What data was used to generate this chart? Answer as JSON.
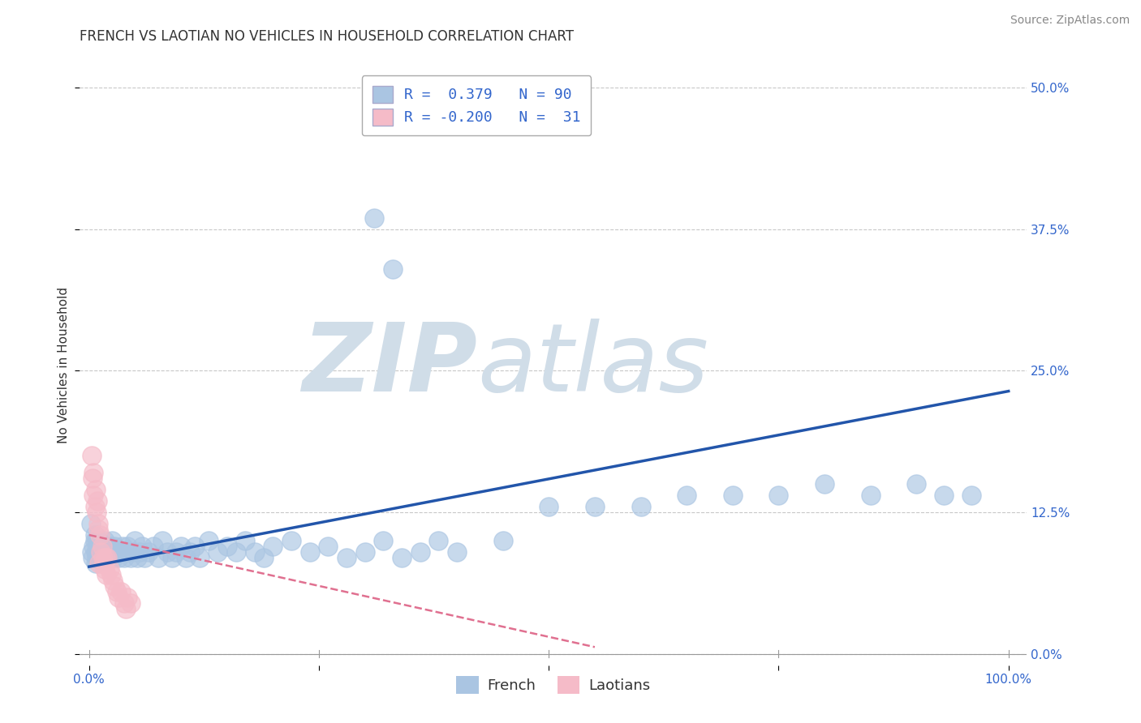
{
  "title": "FRENCH VS LAOTIAN NO VEHICLES IN HOUSEHOLD CORRELATION CHART",
  "source": "Source: ZipAtlas.com",
  "ylabel": "No Vehicles in Household",
  "xlim": [
    -0.01,
    1.02
  ],
  "ylim": [
    -0.01,
    0.52
  ],
  "xtick_positions": [
    0.0,
    0.25,
    0.5,
    0.75,
    1.0
  ],
  "xtick_labels": [
    "0.0%",
    "",
    "",
    "",
    "100.0%"
  ],
  "ytick_values": [
    0.0,
    0.125,
    0.25,
    0.375,
    0.5
  ],
  "ytick_labels": [
    "0.0%",
    "12.5%",
    "25.0%",
    "37.5%",
    "50.0%"
  ],
  "grid_color": "#c8c8c8",
  "background_color": "#ffffff",
  "french_color": "#aac5e2",
  "french_line_color": "#2255aa",
  "french_R": 0.379,
  "french_N": 90,
  "french_slope": 0.155,
  "french_intercept": 0.077,
  "laotian_color": "#f5bbc8",
  "laotian_line_color": "#e07090",
  "laotian_R": -0.2,
  "laotian_N": 31,
  "laotian_slope": -0.18,
  "laotian_intercept": 0.105,
  "french_x": [
    0.002,
    0.003,
    0.004,
    0.005,
    0.006,
    0.006,
    0.007,
    0.007,
    0.008,
    0.008,
    0.009,
    0.01,
    0.01,
    0.011,
    0.012,
    0.013,
    0.014,
    0.015,
    0.015,
    0.016,
    0.017,
    0.018,
    0.019,
    0.02,
    0.021,
    0.022,
    0.023,
    0.024,
    0.025,
    0.026,
    0.027,
    0.028,
    0.03,
    0.032,
    0.034,
    0.036,
    0.038,
    0.04,
    0.042,
    0.045,
    0.048,
    0.05,
    0.052,
    0.055,
    0.058,
    0.06,
    0.065,
    0.07,
    0.075,
    0.08,
    0.085,
    0.09,
    0.095,
    0.1,
    0.105,
    0.11,
    0.115,
    0.12,
    0.13,
    0.14,
    0.15,
    0.16,
    0.17,
    0.18,
    0.19,
    0.2,
    0.22,
    0.24,
    0.26,
    0.28,
    0.3,
    0.32,
    0.34,
    0.36,
    0.38,
    0.4,
    0.45,
    0.5,
    0.55,
    0.6,
    0.65,
    0.7,
    0.75,
    0.8,
    0.85,
    0.9,
    0.93,
    0.96,
    0.31,
    0.33
  ],
  "french_y": [
    0.115,
    0.09,
    0.085,
    0.095,
    0.1,
    0.105,
    0.08,
    0.09,
    0.085,
    0.1,
    0.095,
    0.085,
    0.09,
    0.1,
    0.09,
    0.085,
    0.095,
    0.085,
    0.09,
    0.095,
    0.1,
    0.085,
    0.09,
    0.095,
    0.085,
    0.09,
    0.095,
    0.085,
    0.1,
    0.09,
    0.085,
    0.095,
    0.09,
    0.085,
    0.09,
    0.095,
    0.085,
    0.09,
    0.095,
    0.085,
    0.09,
    0.1,
    0.085,
    0.09,
    0.095,
    0.085,
    0.09,
    0.095,
    0.085,
    0.1,
    0.09,
    0.085,
    0.09,
    0.095,
    0.085,
    0.09,
    0.095,
    0.085,
    0.1,
    0.09,
    0.095,
    0.09,
    0.1,
    0.09,
    0.085,
    0.095,
    0.1,
    0.09,
    0.095,
    0.085,
    0.09,
    0.1,
    0.085,
    0.09,
    0.1,
    0.09,
    0.1,
    0.13,
    0.13,
    0.13,
    0.14,
    0.14,
    0.14,
    0.15,
    0.14,
    0.15,
    0.14,
    0.14,
    0.385,
    0.34
  ],
  "laotian_x": [
    0.003,
    0.004,
    0.005,
    0.005,
    0.006,
    0.007,
    0.008,
    0.009,
    0.01,
    0.01,
    0.011,
    0.012,
    0.013,
    0.014,
    0.015,
    0.016,
    0.017,
    0.018,
    0.019,
    0.02,
    0.022,
    0.024,
    0.026,
    0.028,
    0.03,
    0.032,
    0.035,
    0.038,
    0.04,
    0.042,
    0.045
  ],
  "laotian_y": [
    0.175,
    0.155,
    0.16,
    0.14,
    0.13,
    0.145,
    0.125,
    0.135,
    0.11,
    0.115,
    0.08,
    0.105,
    0.09,
    0.095,
    0.085,
    0.08,
    0.075,
    0.085,
    0.07,
    0.085,
    0.075,
    0.07,
    0.065,
    0.06,
    0.055,
    0.05,
    0.055,
    0.045,
    0.04,
    0.05,
    0.045
  ],
  "watermark_zip": "ZIP",
  "watermark_atlas": "atlas",
  "watermark_color": "#d0dde8",
  "legend_french_label": "French",
  "legend_laotian_label": "Laotians",
  "title_fontsize": 12,
  "axis_label_fontsize": 11,
  "tick_fontsize": 11,
  "source_fontsize": 10
}
